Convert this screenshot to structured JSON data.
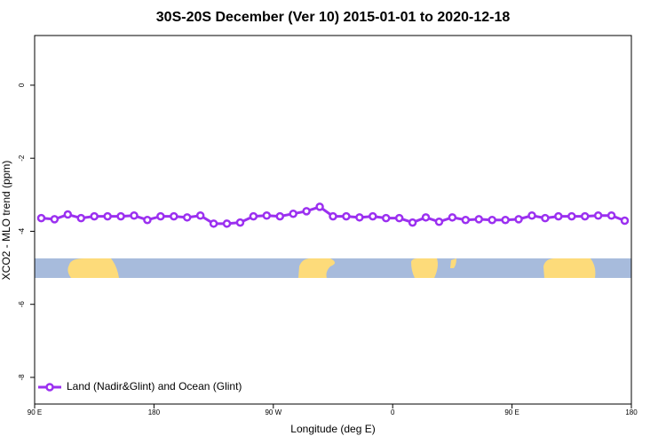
{
  "chart_data": {
    "type": "line",
    "title": "30S-20S December (Ver 10)   2015-01-01 to 2020-12-18",
    "xlabel": "Longitude (deg E)",
    "ylabel": "XCO2 - MLO trend (ppm)",
    "xlim": [
      90,
      540
    ],
    "ylim": [
      -8.73,
      1.36
    ],
    "xticks": [
      {
        "value": 90,
        "label": "90 E"
      },
      180,
      {
        "value": 270,
        "label": "90 W"
      },
      {
        "value": 360,
        "label": "0"
      },
      {
        "value": 450,
        "label": "90 E"
      },
      {
        "value": 540,
        "label": "180"
      }
    ],
    "yticks": [
      0,
      -2,
      -4,
      -6,
      -8
    ],
    "legend": "bottom-left",
    "x": [
      95,
      105,
      115,
      125,
      135,
      145,
      155,
      165,
      175,
      185,
      195,
      205,
      215,
      225,
      235,
      245,
      255,
      265,
      275,
      285,
      295,
      305,
      315,
      325,
      335,
      345,
      355,
      365,
      375,
      385,
      395,
      405,
      415,
      425,
      435,
      445,
      455,
      465,
      475,
      485,
      495,
      505,
      515,
      525,
      535
    ],
    "series": [
      {
        "name": "Land (Nadir&Glint) and Ocean (Glint)",
        "color": "#9b30f0",
        "values": [
          -3.64,
          -3.67,
          -3.54,
          -3.64,
          -3.59,
          -3.59,
          -3.59,
          -3.57,
          -3.69,
          -3.59,
          -3.59,
          -3.62,
          -3.57,
          -3.79,
          -3.79,
          -3.76,
          -3.59,
          -3.57,
          -3.59,
          -3.52,
          -3.45,
          -3.33,
          -3.59,
          -3.59,
          -3.62,
          -3.59,
          -3.64,
          -3.64,
          -3.76,
          -3.62,
          -3.74,
          -3.62,
          -3.69,
          -3.67,
          -3.69,
          -3.69,
          -3.67,
          -3.57,
          -3.64,
          -3.59,
          -3.59,
          -3.59,
          -3.57,
          -3.57,
          -3.71
        ]
      }
    ]
  }
}
